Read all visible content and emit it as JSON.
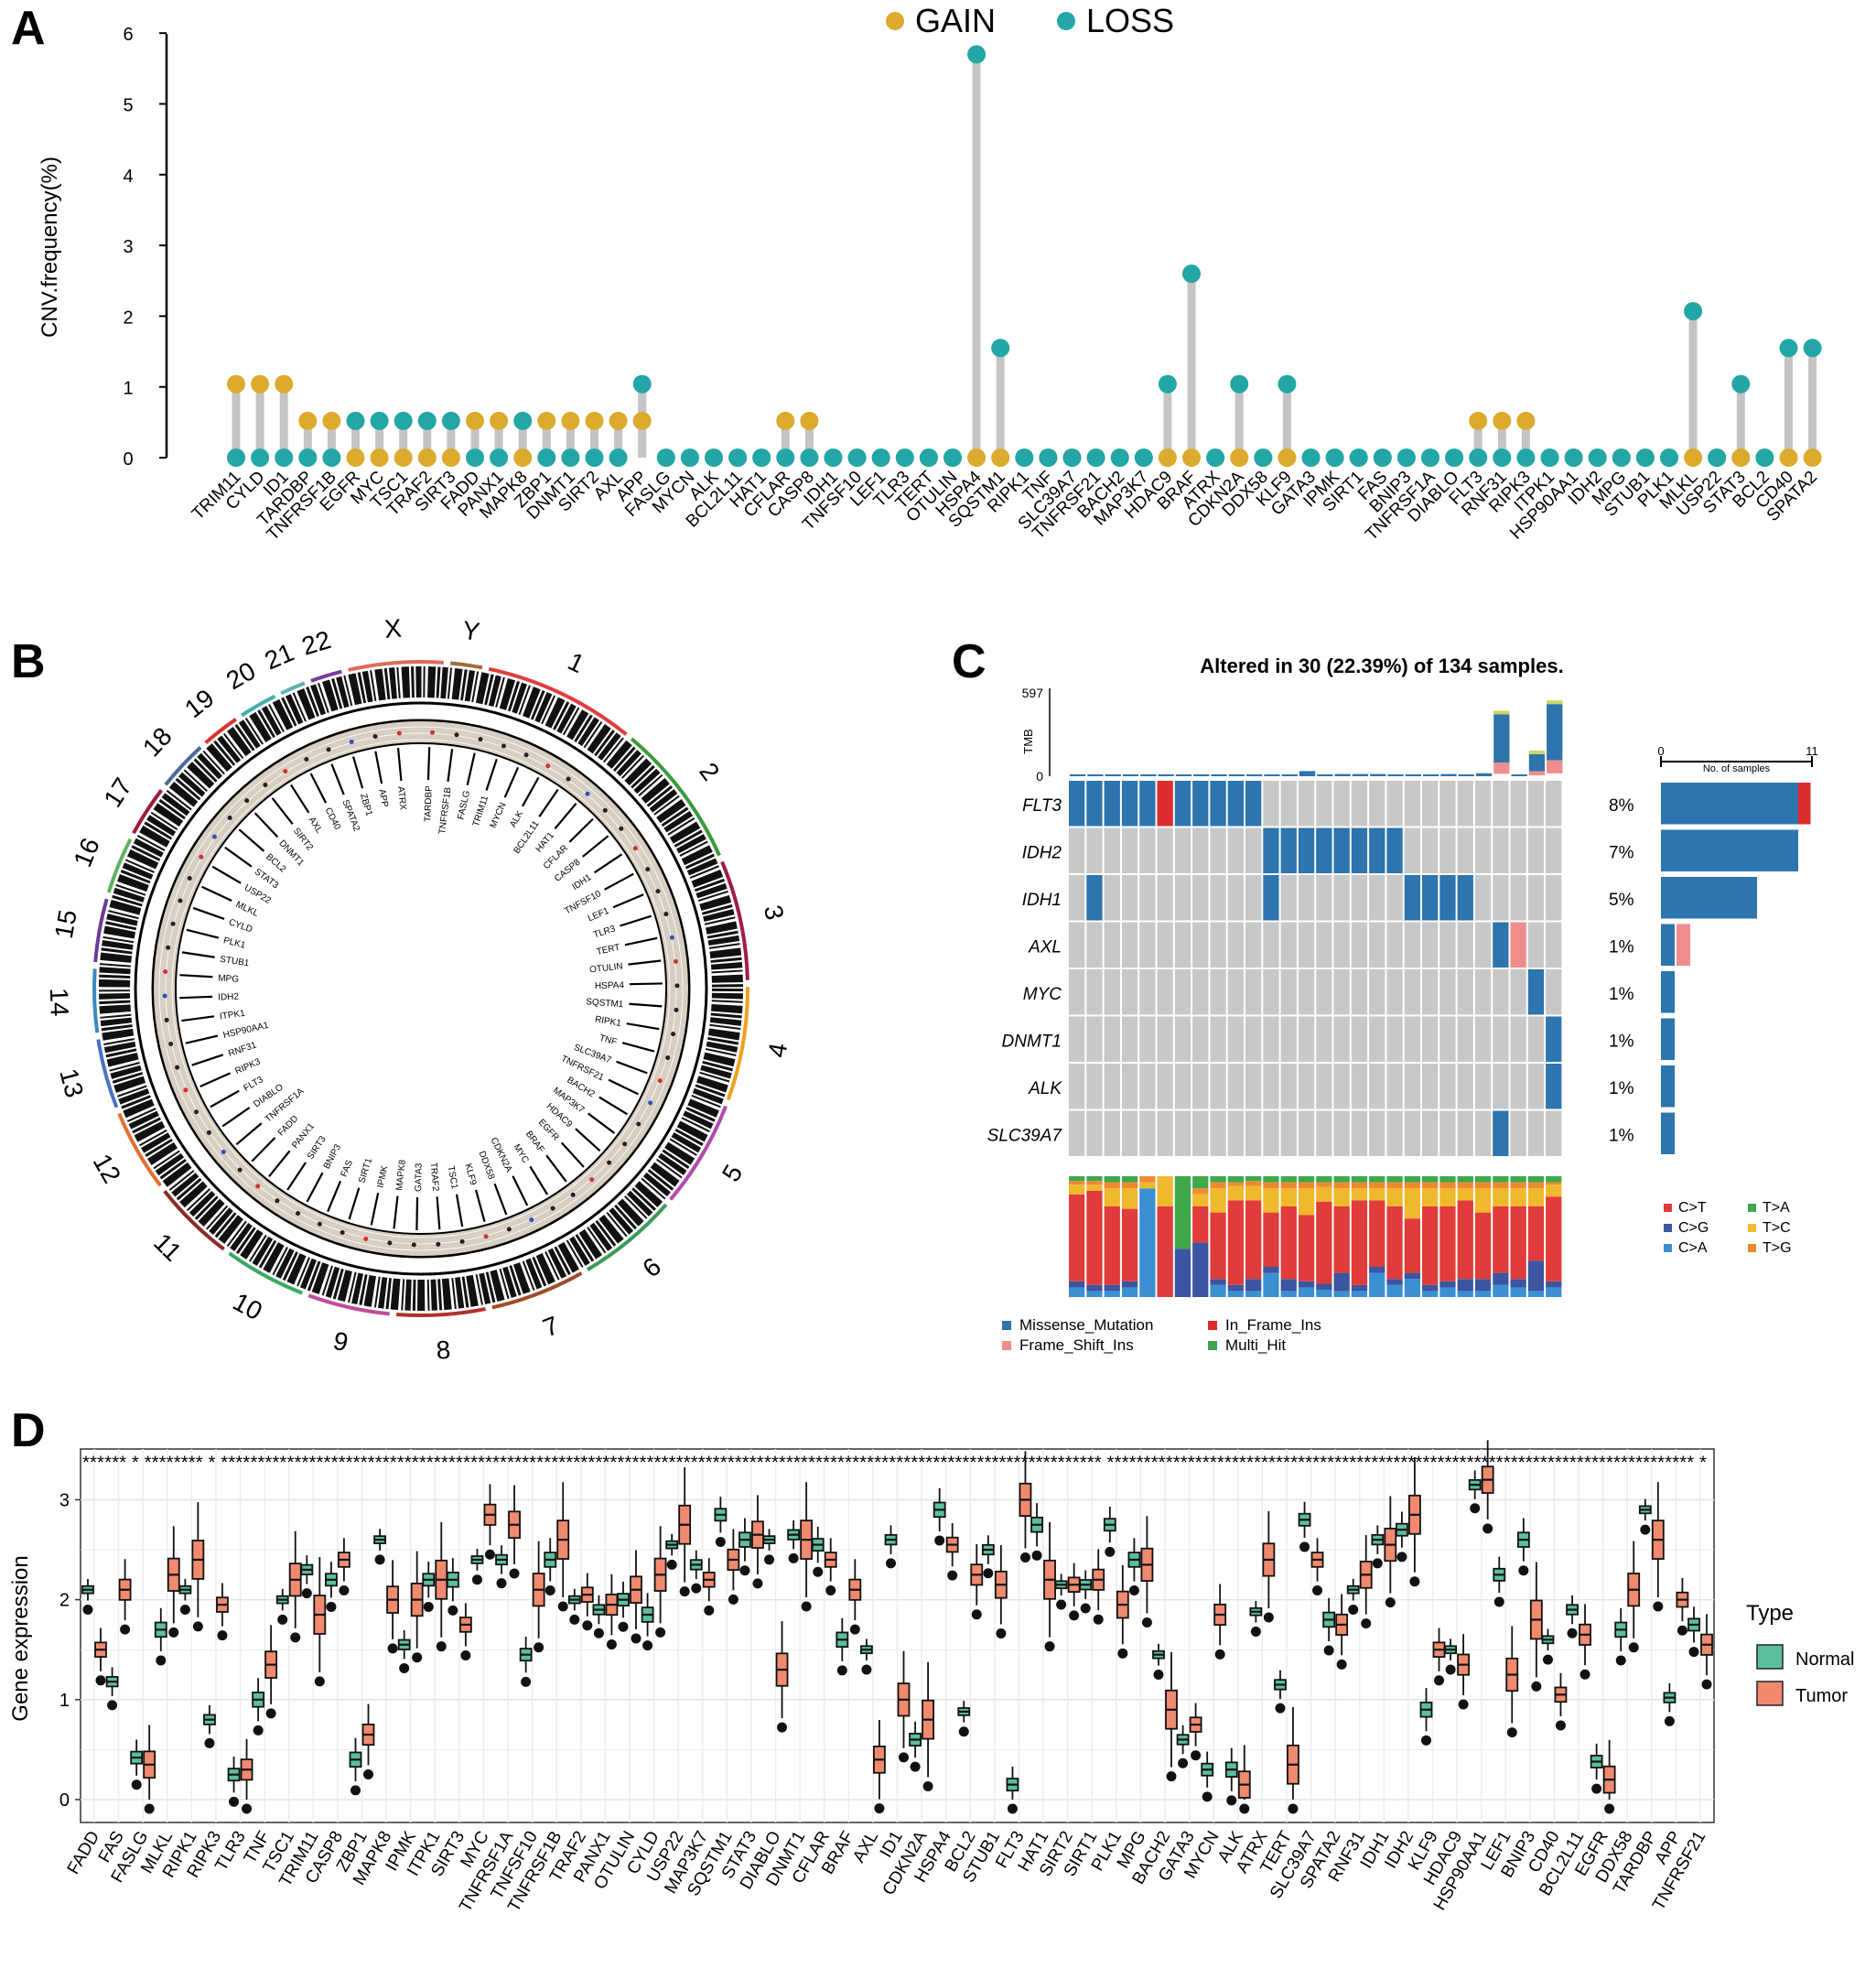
{
  "colors": {
    "gain": "#dcaa2d",
    "loss": "#22a6a6",
    "stem": "#c4c4c4",
    "missense": "#2e74ad",
    "inframe": "#dc2d2d",
    "frameshift": "#f08c8c",
    "multi": "#3ea24a",
    "grey": "#c8c8c8",
    "normal": "#5bbf9b",
    "tumor": "#f08a6e",
    "ct": "#e03c3c",
    "cg": "#3b55a0",
    "ca": "#3c90d2",
    "ta": "#3fa84b",
    "tc": "#f0b82c",
    "tg": "#f08a30"
  },
  "panel_labels": {
    "a": "A",
    "b": "B",
    "c": "C",
    "d": "D"
  },
  "chart_data": [
    {
      "id": "A",
      "type": "scatter",
      "subtype": "lollipop",
      "legend": {
        "gain": "GAIN",
        "loss": "LOSS"
      },
      "ylabel": "CNV.frequency(%)",
      "ylim": [
        0,
        6
      ],
      "yticks": [
        "0",
        "1",
        "2",
        "3",
        "4",
        "5",
        "6"
      ],
      "genes": [
        "TRIM11",
        "CYLD",
        "ID1",
        "TARDBP",
        "TNFRSF1B",
        "EGFR",
        "MYC",
        "TSC1",
        "TRAF2",
        "SIRT3",
        "FADD",
        "PANX1",
        "MAPK8",
        "ZBP1",
        "DNMT1",
        "SIRT2",
        "AXL",
        "APP",
        "FASLG",
        "MYCN",
        "ALK",
        "BCL2L11",
        "HAT1",
        "CFLAR",
        "CASP8",
        "IDH1",
        "TNFSF10",
        "LEF1",
        "TLR3",
        "TERT",
        "OTULIN",
        "HSPA4",
        "SQSTM1",
        "RIPK1",
        "TNF",
        "SLC39A7",
        "TNFRSF21",
        "BACH2",
        "MAP3K7",
        "HDAC9",
        "BRAF",
        "ATRX",
        "CDKN2A",
        "DDX58",
        "KLF9",
        "GATA3",
        "IPMK",
        "SIRT1",
        "FAS",
        "BNIP3",
        "TNFRSF1A",
        "DIABLO",
        "FLT3",
        "RNF31",
        "RIPK3",
        "ITPK1",
        "HSP90AA1",
        "IDH2",
        "MPG",
        "STUB1",
        "PLK1",
        "MLKL",
        "USP22",
        "STAT3",
        "BCL2",
        "CD40",
        "SPATA2"
      ],
      "gain": [
        1.04,
        1.04,
        1.04,
        0.52,
        0.52,
        0,
        0,
        0,
        0,
        0,
        0.52,
        0.52,
        0,
        0.52,
        0.52,
        0.52,
        0.52,
        0.52,
        0,
        0,
        0,
        0,
        0,
        0.52,
        0.52,
        0,
        0,
        0,
        0,
        0,
        0,
        0,
        0,
        0,
        0,
        0,
        0,
        0,
        0,
        0,
        0,
        0,
        0,
        0,
        0,
        0,
        0,
        0,
        0,
        0,
        0,
        0,
        0.52,
        0.52,
        0.52,
        0,
        0,
        0,
        0,
        0,
        0,
        0,
        0,
        0,
        0,
        0,
        0
      ],
      "loss": [
        0,
        0,
        0,
        0,
        0,
        0.52,
        0.52,
        0.52,
        0.52,
        0.52,
        0,
        0,
        0.52,
        0,
        0,
        0,
        0,
        1.04,
        0,
        0,
        0,
        0,
        0,
        0,
        0,
        0,
        0,
        0,
        0,
        0,
        0,
        5.7,
        1.55,
        0,
        0,
        0,
        0,
        0,
        0,
        1.04,
        2.6,
        0,
        1.04,
        0,
        1.04,
        0,
        0,
        0,
        0,
        0,
        0,
        0,
        0,
        0,
        0,
        0,
        0,
        0,
        0,
        0,
        0,
        2.07,
        0,
        1.04,
        0,
        1.55,
        1.55
      ]
    },
    {
      "id": "B",
      "type": "other",
      "subtype": "circos",
      "chromosomes": [
        "1",
        "2",
        "3",
        "4",
        "5",
        "6",
        "7",
        "8",
        "9",
        "10",
        "11",
        "12",
        "13",
        "14",
        "15",
        "16",
        "17",
        "18",
        "19",
        "20",
        "21",
        "22",
        "X",
        "Y"
      ],
      "gene_labels": [
        "TARDBP",
        "TNFRSF1B",
        "FASLG",
        "TRIM11",
        "MYCN",
        "ALK",
        "BCL2L11",
        "HAT1",
        "CFLAR",
        "CASP8",
        "IDH1",
        "TNFSF10",
        "LEF1",
        "TLR3",
        "TERT",
        "OTULIN",
        "HSPA4",
        "SQSTM1",
        "RIPK1",
        "TNF",
        "SLC39A7",
        "TNFRSF21",
        "BACH2",
        "MAP3K7",
        "HDAC9",
        "EGFR",
        "BRAF",
        "MYC",
        "CDKN2A",
        "DDX58",
        "KLF9",
        "TSC1",
        "TRAF2",
        "GATA3",
        "MAPK8",
        "IPMK",
        "SIRT1",
        "FAS",
        "BNIP3",
        "SIRT3",
        "PANX1",
        "FADD",
        "TNFRSF1A",
        "DIABLO",
        "FLT3",
        "RIPK3",
        "RNF31",
        "HSP90AA1",
        "ITPK1",
        "IDH2",
        "MPG",
        "STUB1",
        "PLK1",
        "CYLD",
        "MLKL",
        "USP22",
        "STAT3",
        "BCL2",
        "DNMT1",
        "SIRT2",
        "AXL",
        "CD40",
        "SPATA2",
        "ZBP1",
        "APP",
        "ATRX"
      ]
    },
    {
      "id": "C",
      "type": "heatmap",
      "subtype": "oncoplot",
      "title": "Altered in 30 (22.39%) of 134 samples.",
      "tmb_label": "TMB",
      "tmb_ticks": [
        "597",
        "0"
      ],
      "tmb_max": 597,
      "tmb": [
        8,
        8,
        8,
        8,
        8,
        5,
        8,
        8,
        8,
        8,
        8,
        10,
        12,
        35,
        10,
        15,
        15,
        15,
        10,
        12,
        10,
        15,
        10,
        20,
        420,
        5,
        150,
        490
      ],
      "genes": [
        "FLT3",
        "IDH2",
        "IDH1",
        "AXL",
        "MYC",
        "DNMT1",
        "ALK",
        "SLC39A7"
      ],
      "percents": [
        "8%",
        "7%",
        "5%",
        "1%",
        "1%",
        "1%",
        "1%",
        "1%"
      ],
      "matrix": [
        "MMMMMIMMMMMGGGGGGGGGGGGGGGGG",
        "GGGGGGGGGGGMMMMMMMMGGGGGGGGG",
        "GMGGGGGGGGGMGGGGGGGMMMMGGGGG",
        "GGGGGGGGGGGGGGGGGGGGGGGGMFGG",
        "GGGGGGGGGGGGGGGGGGGGGGGGGGMG",
        "GGGGGGGGGGGGGGGGGGGGGGGGGGGM",
        "GGGGGGGGGGGGGGGGGGGGGGGGGGGM",
        "GGGGGGGGGGGGGGGGGGGGGGGGMGGG"
      ],
      "samples_axis": {
        "label": "No. of samples",
        "ticks": [
          "0",
          "11"
        ],
        "max": 11
      },
      "counts": [
        {
          "missense": 10,
          "inframe": 1,
          "frameshift": 0
        },
        {
          "missense": 10,
          "inframe": 0,
          "frameshift": 0
        },
        {
          "missense": 7,
          "inframe": 0,
          "frameshift": 0
        },
        {
          "missense": 1,
          "inframe": 0,
          "frameshift": 1
        },
        {
          "missense": 1,
          "inframe": 0,
          "frameshift": 0
        },
        {
          "missense": 1,
          "inframe": 0,
          "frameshift": 0
        },
        {
          "missense": 1,
          "inframe": 0,
          "frameshift": 0
        },
        {
          "missense": 1,
          "inframe": 0,
          "frameshift": 0
        }
      ],
      "titv_legend": [
        "C>T",
        "T>A",
        "C>G",
        "T>C",
        "C>A",
        "T>G"
      ],
      "titv_order": [
        "ca",
        "cg",
        "ct",
        "tc",
        "tg",
        "ta"
      ],
      "titv": [
        [
          0.08,
          0.05,
          0.72,
          0.08,
          0.03,
          0.04
        ],
        [
          0.05,
          0.05,
          0.78,
          0.05,
          0.03,
          0.04
        ],
        [
          0.05,
          0.05,
          0.65,
          0.15,
          0.05,
          0.05
        ],
        [
          0.08,
          0.05,
          0.6,
          0.17,
          0.05,
          0.05
        ],
        [
          0.9,
          0.0,
          0.0,
          0.05,
          0.05,
          0.0
        ],
        [
          0.0,
          0.0,
          0.75,
          0.25,
          0.0,
          0.0
        ],
        [
          0.0,
          0.4,
          0.0,
          0.0,
          0.0,
          0.6
        ],
        [
          0.0,
          0.45,
          0.3,
          0.1,
          0.05,
          0.1
        ],
        [
          0.1,
          0.05,
          0.55,
          0.2,
          0.05,
          0.05
        ],
        [
          0.05,
          0.05,
          0.7,
          0.12,
          0.03,
          0.05
        ],
        [
          0.05,
          0.1,
          0.65,
          0.12,
          0.04,
          0.04
        ],
        [
          0.2,
          0.05,
          0.45,
          0.2,
          0.05,
          0.05
        ],
        [
          0.05,
          0.1,
          0.6,
          0.15,
          0.05,
          0.05
        ],
        [
          0.08,
          0.05,
          0.55,
          0.22,
          0.05,
          0.05
        ],
        [
          0.06,
          0.05,
          0.68,
          0.12,
          0.04,
          0.05
        ],
        [
          0.05,
          0.15,
          0.55,
          0.15,
          0.05,
          0.05
        ],
        [
          0.05,
          0.05,
          0.7,
          0.1,
          0.05,
          0.05
        ],
        [
          0.2,
          0.05,
          0.55,
          0.1,
          0.05,
          0.05
        ],
        [
          0.1,
          0.05,
          0.6,
          0.15,
          0.05,
          0.05
        ],
        [
          0.15,
          0.05,
          0.45,
          0.25,
          0.05,
          0.05
        ],
        [
          0.05,
          0.05,
          0.65,
          0.15,
          0.05,
          0.05
        ],
        [
          0.08,
          0.05,
          0.62,
          0.15,
          0.05,
          0.05
        ],
        [
          0.05,
          0.1,
          0.65,
          0.1,
          0.05,
          0.05
        ],
        [
          0.05,
          0.1,
          0.55,
          0.2,
          0.05,
          0.05
        ],
        [
          0.1,
          0.1,
          0.55,
          0.15,
          0.05,
          0.05
        ],
        [
          0.08,
          0.07,
          0.6,
          0.15,
          0.05,
          0.05
        ],
        [
          0.05,
          0.25,
          0.45,
          0.15,
          0.05,
          0.05
        ],
        [
          0.08,
          0.05,
          0.7,
          0.1,
          0.02,
          0.05
        ]
      ],
      "variant_legend": [
        "Missense_Mutation",
        "In_Frame_Ins",
        "Frame_Shift_Ins",
        "Multi_Hit"
      ]
    },
    {
      "id": "D",
      "type": "other",
      "subtype": "boxplot",
      "ylabel": "Gene expression",
      "ylim": [
        -0.1,
        3.5
      ],
      "yticks": [
        "0",
        "1",
        "2",
        "3"
      ],
      "legend": {
        "title": "Type",
        "normal": "Normal",
        "tumor": "Tumor"
      },
      "significance": "****** * ******** *    ************************************************************************************************************************    ******************************************************************************** *",
      "genes": [
        "FADD",
        "FAS",
        "FASLG",
        "MLKL",
        "RIPK1",
        "RIPK3",
        "TLR3",
        "TNF",
        "TSC1",
        "TRIM11",
        "CASP8",
        "ZBP1",
        "MAPK8",
        "IPMK",
        "ITPK1",
        "SIRT3",
        "MYC",
        "TNFRSF1A",
        "TNFSF10",
        "TNFRSF1B",
        "TRAF2",
        "PANX1",
        "OTULIN",
        "CYLD",
        "USP22",
        "MAP3K7",
        "SQSTM1",
        "STAT3",
        "DIABLO",
        "DNMT1",
        "CFLAR",
        "BRAF",
        "AXL",
        "ID1",
        "CDKN2A",
        "HSPA4",
        "BCL2",
        "STUB1",
        "FLT3",
        "HAT1",
        "SIRT2",
        "SIRT1",
        "PLK1",
        "MPG",
        "BACH2",
        "GATA3",
        "MYCN",
        "ALK",
        "ATRX",
        "TERT",
        "SLC39A7",
        "SPATA2",
        "RNF31",
        "IDH1",
        "IDH2",
        "KLF9",
        "HDAC9",
        "HSP90AA1",
        "LEF1",
        "BNIP3",
        "CD40",
        "BCL2L11",
        "EGFR",
        "DDX58",
        "TARDBP",
        "APP",
        "TNFRSF21"
      ],
      "normal_median": [
        2.1,
        1.18,
        0.42,
        1.7,
        2.1,
        0.8,
        0.25,
        1.0,
        2.0,
        2.3,
        2.2,
        0.4,
        2.6,
        1.55,
        2.2,
        2.2,
        2.4,
        2.4,
        1.45,
        2.4,
        2.0,
        1.9,
        2.0,
        1.85,
        2.55,
        2.35,
        2.85,
        2.6,
        2.6,
        2.65,
        2.55,
        1.6,
        1.5,
        2.6,
        0.6,
        2.9,
        0.88,
        2.5,
        0.15,
        2.75,
        2.15,
        2.15,
        2.75,
        2.4,
        1.45,
        0.6,
        0.3,
        0.3,
        1.88,
        1.15,
        2.8,
        1.8,
        2.1,
        2.6,
        2.7,
        0.9,
        1.5,
        3.15,
        2.25,
        2.6,
        1.6,
        1.9,
        0.38,
        1.7,
        2.9,
        1.02,
        1.75
      ],
      "tumor_median": [
        1.5,
        2.1,
        0.35,
        2.25,
        2.4,
        1.95,
        0.3,
        1.35,
        2.2,
        1.85,
        2.4,
        0.65,
        2.0,
        2.0,
        2.2,
        1.75,
        2.85,
        2.75,
        2.1,
        2.6,
        2.05,
        1.95,
        2.1,
        2.25,
        2.75,
        2.2,
        2.4,
        2.65,
        1.3,
        2.6,
        2.4,
        2.1,
        0.4,
        1.0,
        0.8,
        2.55,
        2.25,
        2.15,
        3.0,
        2.2,
        2.15,
        2.2,
        1.95,
        2.35,
        0.9,
        0.75,
        1.85,
        0.15,
        2.4,
        0.35,
        2.4,
        1.75,
        2.25,
        2.55,
        2.85,
        1.5,
        1.35,
        3.2,
        1.25,
        1.8,
        1.05,
        1.65,
        0.2,
        2.1,
        2.6,
        2.0,
        1.55
      ]
    }
  ]
}
